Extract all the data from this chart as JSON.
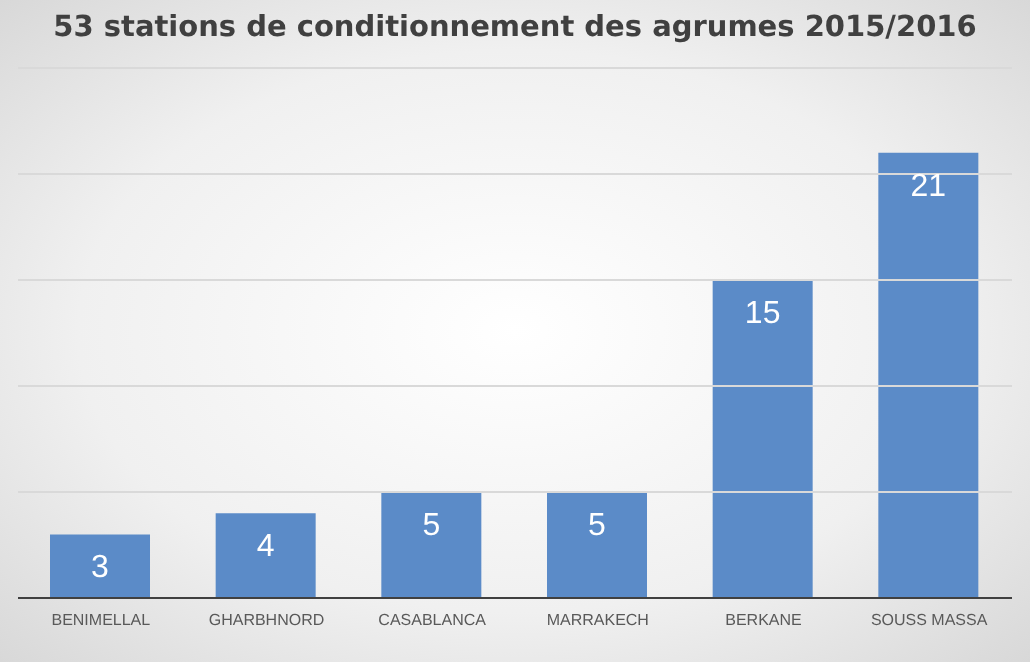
{
  "chart_data": {
    "type": "bar",
    "title": "53 stations de conditionnement des agrumes 2015/2016",
    "categories": [
      "BENIMELLAL",
      "GHARBHNORD",
      "CASABLANCA",
      "MARRAKECH",
      "BERKANE",
      "SOUSS MASSA"
    ],
    "values": [
      3,
      4,
      5,
      5,
      15,
      21
    ],
    "color": "#5b8bc8",
    "ylim": [
      0,
      25
    ],
    "yticks": [
      {
        "value": 0,
        "label": null
      },
      {
        "value": 5,
        "label": null
      },
      {
        "value": 10,
        "label": null
      },
      {
        "value": 15,
        "label": null
      },
      {
        "value": 20,
        "label": null
      },
      {
        "value": 25,
        "label": null
      }
    ],
    "grid": "y",
    "data_labels": true,
    "tick_labels": "x",
    "legend": false
  }
}
